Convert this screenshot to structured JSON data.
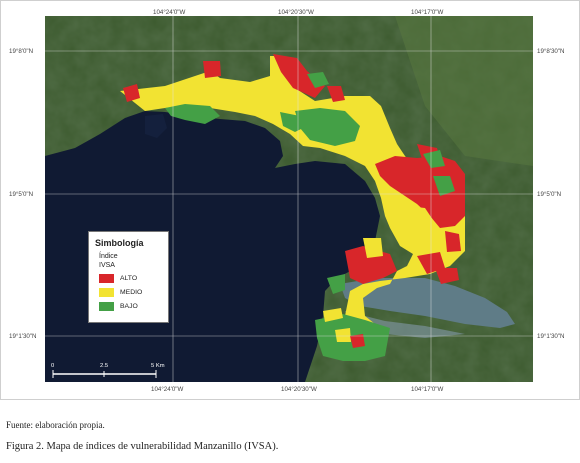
{
  "map": {
    "top_labels": [
      "104°24'0\"W",
      "104°20'30\"W",
      "104°17'0\"W"
    ],
    "bottom_labels": [
      "104°24'0\"W",
      "104°20'30\"W",
      "104°17'0\"W"
    ],
    "left_labels": [
      "19°8'0\"N",
      "19°5'0\"N",
      "19°1'30\"N"
    ],
    "right_labels": [
      "19°8'30\"N",
      "19°5'0\"N",
      "19°1'30\"N"
    ],
    "scale_bar": {
      "ticks": [
        "0",
        "2.5",
        "5 Km"
      ]
    },
    "colors": {
      "alto": "#d8262a",
      "medio": "#f2e332",
      "bajo": "#44a046",
      "sea": "#101a33",
      "land": "#3c5a2e"
    }
  },
  "legend": {
    "title": "Simbología",
    "subtitle1": "Índice",
    "subtitle2": "IVSA",
    "items": [
      {
        "label": "ALTO",
        "color": "#d8262a"
      },
      {
        "label": "MEDIO",
        "color": "#f2e332"
      },
      {
        "label": "BAJO",
        "color": "#44a046"
      }
    ]
  },
  "source": "Fuente: elaboración propia.",
  "caption": "Figura 2. Mapa de índices de vulnerabilidad Manzanillo (IVSA)."
}
